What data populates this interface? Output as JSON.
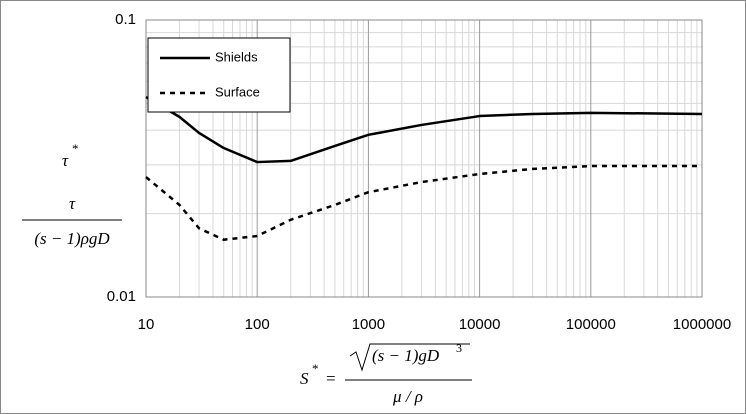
{
  "chart_data": {
    "type": "line",
    "log_x": true,
    "log_y": true,
    "grid": true,
    "x": [
      10,
      20,
      30,
      50,
      100,
      200,
      500,
      1000,
      3000,
      10000,
      30000,
      100000,
      1000000
    ],
    "series": [
      {
        "name": "Shields",
        "color": "#000000",
        "dash": "solid",
        "values": [
          0.0527,
          0.0447,
          0.0391,
          0.0345,
          0.0307,
          0.031,
          0.0351,
          0.0385,
          0.0418,
          0.045,
          0.0458,
          0.0462,
          0.0458
        ]
      },
      {
        "name": "Surface",
        "color": "#000000",
        "dash": "dashed",
        "values": [
          0.0271,
          0.0215,
          0.0177,
          0.0161,
          0.0166,
          0.019,
          0.0215,
          0.0239,
          0.026,
          0.0278,
          0.029,
          0.0297,
          0.0297
        ]
      }
    ],
    "xlim": [
      10,
      1000000
    ],
    "ylim": [
      0.01,
      0.1
    ],
    "xticks": [
      10,
      100,
      1000,
      10000,
      100000,
      1000000
    ],
    "yticks": [
      0.01,
      0.1
    ],
    "xminorticks": [
      20,
      30,
      40,
      50,
      60,
      70,
      80,
      90,
      200,
      300,
      400,
      500,
      600,
      700,
      800,
      900,
      2000,
      3000,
      4000,
      5000,
      6000,
      7000,
      8000,
      9000,
      20000,
      30000,
      40000,
      50000,
      60000,
      70000,
      80000,
      90000,
      200000,
      300000,
      400000,
      500000,
      600000,
      700000,
      800000,
      900000
    ],
    "yminorticks": [
      0.02,
      0.03,
      0.04,
      0.05,
      0.06,
      0.07,
      0.08,
      0.09
    ],
    "legend": "top-left",
    "y_label": {
      "symbol": "τ",
      "superscript": "*",
      "numerator": "τ",
      "denominator": "(s − 1)ρgD"
    },
    "x_label": {
      "symbol": "S",
      "superscript": "*",
      "equals": "=",
      "radicand": "(s − 1)gD",
      "exponent": "3",
      "denominator": "μ / ρ"
    }
  }
}
